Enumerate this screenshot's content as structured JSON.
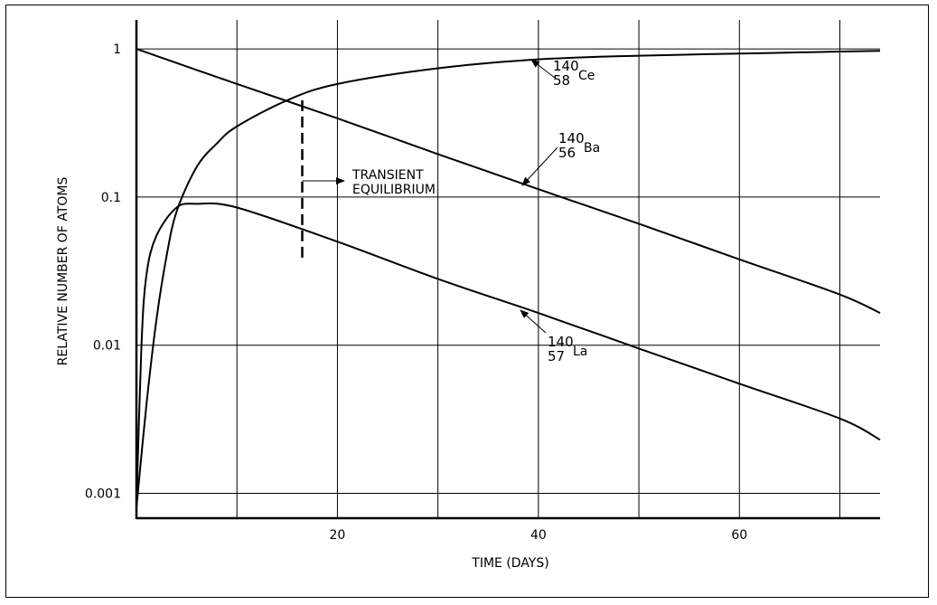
{
  "chart_data": {
    "type": "line",
    "title": "",
    "xlabel": "TIME (DAYS)",
    "ylabel": "RELATIVE NUMBER OF ATOMS",
    "xlim": [
      0,
      74
    ],
    "ylim": [
      0.00068,
      1.57
    ],
    "yscale": "log",
    "grid": true,
    "xticks": [
      {
        "v": 20,
        "label": "20"
      },
      {
        "v": 40,
        "label": "40"
      },
      {
        "v": 60,
        "label": "60"
      }
    ],
    "xgrid": [
      10,
      20,
      30,
      40,
      50,
      60,
      70
    ],
    "yticks": [
      {
        "v": 1,
        "label": "1"
      },
      {
        "v": 0.1,
        "label": "0.1"
      },
      {
        "v": 0.01,
        "label": "0.01"
      },
      {
        "v": 0.001,
        "label": "0.001"
      }
    ],
    "series": [
      {
        "name": "Ba-140",
        "mass": "140",
        "atomic": "56",
        "symbol": "Ba",
        "x": [
          0,
          10,
          20,
          30,
          40,
          50,
          60,
          70,
          74
        ],
        "y": [
          1,
          0.58,
          0.34,
          0.195,
          0.113,
          0.066,
          0.038,
          0.022,
          0.0165
        ]
      },
      {
        "name": "La-140",
        "mass": "140",
        "atomic": "57",
        "symbol": "La",
        "x": [
          0,
          0.5,
          1,
          2,
          4,
          6,
          10,
          20,
          30,
          40,
          50,
          60,
          70,
          74
        ],
        "y": [
          0.0008,
          0.01,
          0.03,
          0.055,
          0.085,
          0.09,
          0.085,
          0.05,
          0.028,
          0.0165,
          0.0095,
          0.0055,
          0.0032,
          0.0023
        ]
      },
      {
        "name": "Ce-140",
        "mass": "140",
        "atomic": "58",
        "symbol": "Ce",
        "x": [
          0,
          1,
          2,
          3,
          4,
          6,
          8,
          10,
          15,
          20,
          30,
          40,
          50,
          60,
          70,
          74
        ],
        "y": [
          0.0008,
          0.004,
          0.015,
          0.04,
          0.08,
          0.16,
          0.23,
          0.3,
          0.45,
          0.58,
          0.74,
          0.85,
          0.9,
          0.93,
          0.96,
          0.97
        ]
      }
    ],
    "annotations": [
      {
        "text_line1": "TRANSIENT",
        "text_line2": "EQUILIBRIUM",
        "marker_x": 16.5,
        "marker_y_range": [
          0.037,
          0.45
        ]
      }
    ]
  }
}
